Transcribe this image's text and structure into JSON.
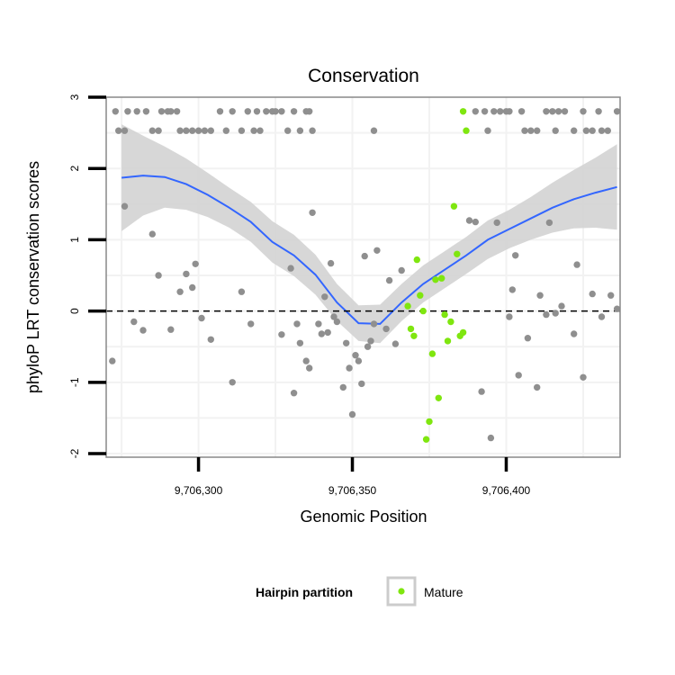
{
  "chart_data": {
    "type": "scatter",
    "title": "Conservation",
    "xlabel": "Genomic Position",
    "ylabel": "phyloP LRT conservation scores",
    "xlim": [
      9706270,
      9706437
    ],
    "ylim": [
      -2.05,
      3.0
    ],
    "xticks": [
      9706300,
      9706350,
      9706400
    ],
    "xtick_labels": [
      "9,706,300",
      "9,706,350",
      "9,706,400"
    ],
    "yticks": [
      -2,
      -1,
      0,
      1,
      2,
      3
    ],
    "ytick_labels": [
      "-2",
      "-1",
      "0",
      "1",
      "2",
      "3"
    ],
    "reference_line": {
      "y": 0,
      "style": "dashed"
    },
    "colors": {
      "other": "#8f8f8f",
      "mature": "#7fe60f",
      "smooth": "#3366ff",
      "ribbon": "#d3d3d3",
      "frame": "#888888",
      "grid": "#f2f2f2"
    },
    "legend": {
      "title": "Hairpin partition",
      "entries": [
        "Mature"
      ],
      "placement": "bottom"
    },
    "series": [
      {
        "name": "Other",
        "points": [
          [
            9706273,
            2.8
          ],
          [
            9706274,
            2.53
          ],
          [
            9706276,
            2.53
          ],
          [
            9706277,
            2.8
          ],
          [
            9706280,
            2.8
          ],
          [
            9706283,
            2.8
          ],
          [
            9706285,
            2.53
          ],
          [
            9706287,
            2.53
          ],
          [
            9706288,
            2.8
          ],
          [
            9706290,
            2.8
          ],
          [
            9706291,
            2.8
          ],
          [
            9706293,
            2.8
          ],
          [
            9706294,
            2.53
          ],
          [
            9706296,
            2.53
          ],
          [
            9706298,
            2.53
          ],
          [
            9706300,
            2.53
          ],
          [
            9706302,
            2.53
          ],
          [
            9706304,
            2.53
          ],
          [
            9706307,
            2.8
          ],
          [
            9706309,
            2.53
          ],
          [
            9706311,
            2.8
          ],
          [
            9706314,
            2.53
          ],
          [
            9706316,
            2.8
          ],
          [
            9706318,
            2.53
          ],
          [
            9706319,
            2.8
          ],
          [
            9706320,
            2.53
          ],
          [
            9706322,
            2.8
          ],
          [
            9706324,
            2.8
          ],
          [
            9706325,
            2.8
          ],
          [
            9706327,
            2.8
          ],
          [
            9706329,
            2.53
          ],
          [
            9706331,
            2.8
          ],
          [
            9706333,
            2.53
          ],
          [
            9706335,
            2.8
          ],
          [
            9706336,
            2.8
          ],
          [
            9706337,
            2.53
          ],
          [
            9706357,
            2.53
          ],
          [
            9706390,
            2.8
          ],
          [
            9706393,
            2.8
          ],
          [
            9706394,
            2.53
          ],
          [
            9706396,
            2.8
          ],
          [
            9706398,
            2.8
          ],
          [
            9706400,
            2.8
          ],
          [
            9706401,
            2.8
          ],
          [
            9706405,
            2.8
          ],
          [
            9706406,
            2.53
          ],
          [
            9706408,
            2.53
          ],
          [
            9706410,
            2.53
          ],
          [
            9706413,
            2.8
          ],
          [
            9706415,
            2.8
          ],
          [
            9706416,
            2.53
          ],
          [
            9706417,
            2.8
          ],
          [
            9706419,
            2.8
          ],
          [
            9706422,
            2.53
          ],
          [
            9706425,
            2.8
          ],
          [
            9706426,
            2.53
          ],
          [
            9706428,
            2.53
          ],
          [
            9706430,
            2.8
          ],
          [
            9706431,
            2.53
          ],
          [
            9706433,
            2.53
          ],
          [
            9706436,
            2.8
          ],
          [
            9706272,
            -0.7
          ],
          [
            9706276,
            1.47
          ],
          [
            9706279,
            -0.15
          ],
          [
            9706282,
            -0.27
          ],
          [
            9706285,
            1.08
          ],
          [
            9706287,
            0.5
          ],
          [
            9706291,
            -0.26
          ],
          [
            9706294,
            0.27
          ],
          [
            9706296,
            0.52
          ],
          [
            9706298,
            0.33
          ],
          [
            9706299,
            0.66
          ],
          [
            9706301,
            -0.1
          ],
          [
            9706304,
            -0.4
          ],
          [
            9706311,
            -1.0
          ],
          [
            9706314,
            0.27
          ],
          [
            9706317,
            -0.18
          ],
          [
            9706327,
            -0.33
          ],
          [
            9706330,
            0.6
          ],
          [
            9706331,
            -1.15
          ],
          [
            9706332,
            -0.18
          ],
          [
            9706333,
            -0.45
          ],
          [
            9706335,
            -0.7
          ],
          [
            9706336,
            -0.8
          ],
          [
            9706337,
            1.38
          ],
          [
            9706339,
            -0.18
          ],
          [
            9706340,
            -0.32
          ],
          [
            9706341,
            0.2
          ],
          [
            9706342,
            -0.3
          ],
          [
            9706343,
            0.67
          ],
          [
            9706344,
            -0.08
          ],
          [
            9706345,
            -0.15
          ],
          [
            9706347,
            -1.07
          ],
          [
            9706348,
            -0.45
          ],
          [
            9706349,
            -0.8
          ],
          [
            9706350,
            -1.45
          ],
          [
            9706351,
            -0.62
          ],
          [
            9706352,
            -0.7
          ],
          [
            9706353,
            -1.02
          ],
          [
            9706354,
            0.77
          ],
          [
            9706355,
            -0.5
          ],
          [
            9706356,
            -0.42
          ],
          [
            9706357,
            -0.18
          ],
          [
            9706358,
            0.85
          ],
          [
            9706361,
            -0.25
          ],
          [
            9706362,
            0.43
          ],
          [
            9706364,
            -0.46
          ],
          [
            9706366,
            0.57
          ],
          [
            9706388,
            1.27
          ],
          [
            9706390,
            1.25
          ],
          [
            9706392,
            -1.13
          ],
          [
            9706395,
            -1.78
          ],
          [
            9706397,
            1.24
          ],
          [
            9706401,
            -0.08
          ],
          [
            9706402,
            0.3
          ],
          [
            9706403,
            0.78
          ],
          [
            9706404,
            -0.9
          ],
          [
            9706407,
            -0.38
          ],
          [
            9706410,
            -1.07
          ],
          [
            9706411,
            0.22
          ],
          [
            9706413,
            -0.05
          ],
          [
            9706414,
            1.24
          ],
          [
            9706416,
            -0.03
          ],
          [
            9706418,
            0.07
          ],
          [
            9706422,
            -0.32
          ],
          [
            9706423,
            0.65
          ],
          [
            9706425,
            -0.93
          ],
          [
            9706428,
            0.24
          ],
          [
            9706431,
            -0.08
          ],
          [
            9706434,
            0.22
          ],
          [
            9706436,
            0.03
          ]
        ]
      },
      {
        "name": "Mature",
        "points": [
          [
            9706386,
            2.8
          ],
          [
            9706387,
            2.53
          ],
          [
            9706368,
            0.07
          ],
          [
            9706369,
            -0.25
          ],
          [
            9706370,
            -0.35
          ],
          [
            9706371,
            0.72
          ],
          [
            9706372,
            0.22
          ],
          [
            9706373,
            0.0
          ],
          [
            9706374,
            -1.8
          ],
          [
            9706375,
            -1.55
          ],
          [
            9706376,
            -0.6
          ],
          [
            9706377,
            0.44
          ],
          [
            9706378,
            -1.22
          ],
          [
            9706379,
            0.46
          ],
          [
            9706380,
            -0.05
          ],
          [
            9706381,
            -0.42
          ],
          [
            9706382,
            -0.15
          ],
          [
            9706383,
            1.47
          ],
          [
            9706384,
            0.8
          ],
          [
            9706385,
            -0.35
          ],
          [
            9706386,
            -0.3
          ]
        ]
      }
    ],
    "smooth": {
      "x": [
        9706275,
        9706282,
        9706289,
        9706296,
        9706303,
        9706310,
        9706317,
        9706324,
        9706331,
        9706338,
        9706345,
        9706352,
        9706359,
        9706366,
        9706373,
        9706380,
        9706387,
        9706394,
        9706401,
        9706408,
        9706415,
        9706422,
        9706429,
        9706436
      ],
      "y": [
        1.87,
        1.9,
        1.88,
        1.78,
        1.63,
        1.45,
        1.25,
        0.97,
        0.78,
        0.51,
        0.12,
        -0.17,
        -0.18,
        0.12,
        0.38,
        0.58,
        0.78,
        1.0,
        1.15,
        1.3,
        1.45,
        1.57,
        1.66,
        1.74
      ],
      "lower": [
        1.12,
        1.34,
        1.45,
        1.42,
        1.32,
        1.17,
        0.97,
        0.68,
        0.49,
        0.23,
        -0.14,
        -0.42,
        -0.45,
        -0.14,
        0.12,
        0.32,
        0.52,
        0.73,
        0.88,
        1.0,
        1.1,
        1.16,
        1.17,
        1.14
      ],
      "upper": [
        2.62,
        2.46,
        2.31,
        2.14,
        1.94,
        1.73,
        1.53,
        1.26,
        1.07,
        0.79,
        0.38,
        0.08,
        0.09,
        0.38,
        0.64,
        0.84,
        1.04,
        1.27,
        1.42,
        1.6,
        1.8,
        1.98,
        2.15,
        2.34
      ]
    }
  }
}
